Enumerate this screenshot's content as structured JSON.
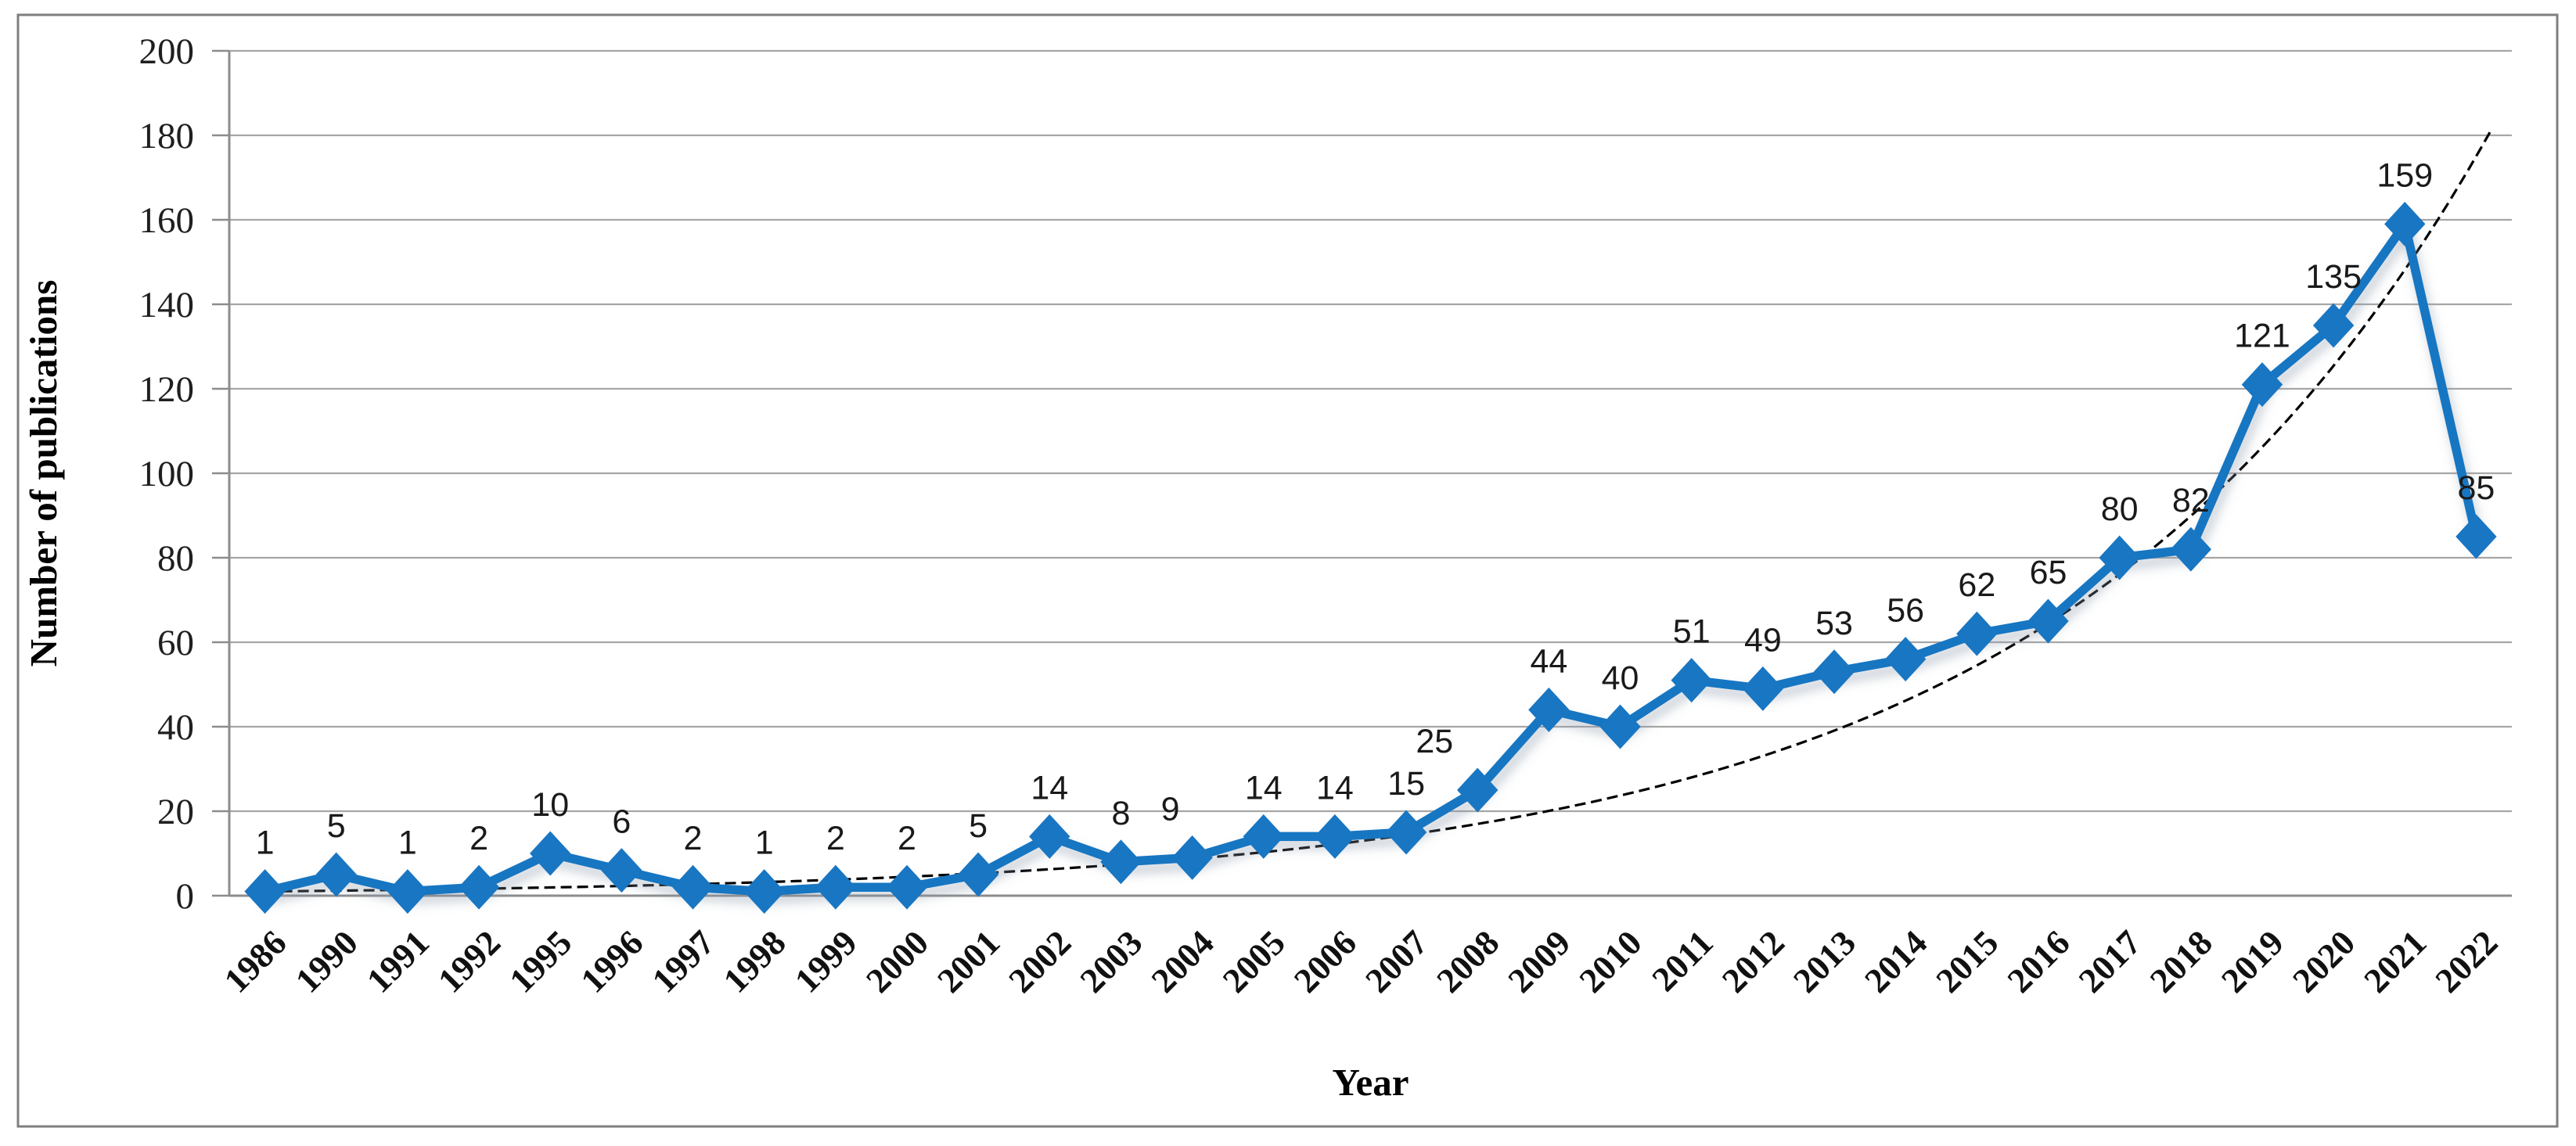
{
  "chart_data": {
    "type": "line",
    "title": "",
    "xlabel": "Year",
    "ylabel": "Number of publications",
    "categories": [
      "1986",
      "1990",
      "1991",
      "1992",
      "1995",
      "1996",
      "1997",
      "1998",
      "1999",
      "2000",
      "2001",
      "2002",
      "2003",
      "2004",
      "2005",
      "2006",
      "2007",
      "2008",
      "2009",
      "2010",
      "2011",
      "2012",
      "2013",
      "2014",
      "2015",
      "2016",
      "2017",
      "2018",
      "2019",
      "2020",
      "2021",
      "2022"
    ],
    "series": [
      {
        "name": "Number of publications",
        "values": [
          1,
          5,
          1,
          2,
          10,
          6,
          2,
          1,
          2,
          2,
          5,
          14,
          8,
          9,
          14,
          14,
          15,
          25,
          44,
          40,
          51,
          49,
          53,
          56,
          62,
          65,
          80,
          82,
          121,
          135,
          159,
          85
        ],
        "data_labels": [
          "1",
          "5",
          "1",
          "2",
          "10",
          "6",
          "2",
          "1",
          "2",
          "2",
          "5",
          "14",
          "8",
          "9",
          "14",
          "14",
          "15",
          "25",
          "44",
          "40",
          "51",
          "49",
          "53",
          "56",
          "62",
          "65",
          "80",
          "82",
          "121",
          "135",
          "159",
          "85"
        ],
        "label_dx": [
          0,
          0,
          0,
          0,
          0,
          0,
          0,
          0,
          0,
          0,
          0,
          0,
          0,
          -28,
          0,
          0,
          0,
          -55,
          0,
          0,
          0,
          0,
          0,
          0,
          0,
          0,
          0,
          0,
          0,
          0,
          0,
          0
        ],
        "marker": "diamond"
      }
    ],
    "trendline": {
      "type": "exponential",
      "start_value": 1,
      "end_value": 184,
      "end_i": 31.3,
      "dashed": true
    },
    "ylim": [
      0,
      200
    ],
    "yticks": [
      0,
      20,
      40,
      60,
      80,
      100,
      120,
      140,
      160,
      180,
      200
    ],
    "grid": "horizontal",
    "legend": "none",
    "colors": {
      "series": "#1976C2",
      "trendline": "#000000",
      "gridline": "#A6A6A6",
      "axis": "#8C8C8C",
      "tick_label": "#1F1F1F",
      "data_label": "#1A1A1A",
      "frame_border": "#7F7F7F",
      "background": "#FFFFFF"
    }
  }
}
